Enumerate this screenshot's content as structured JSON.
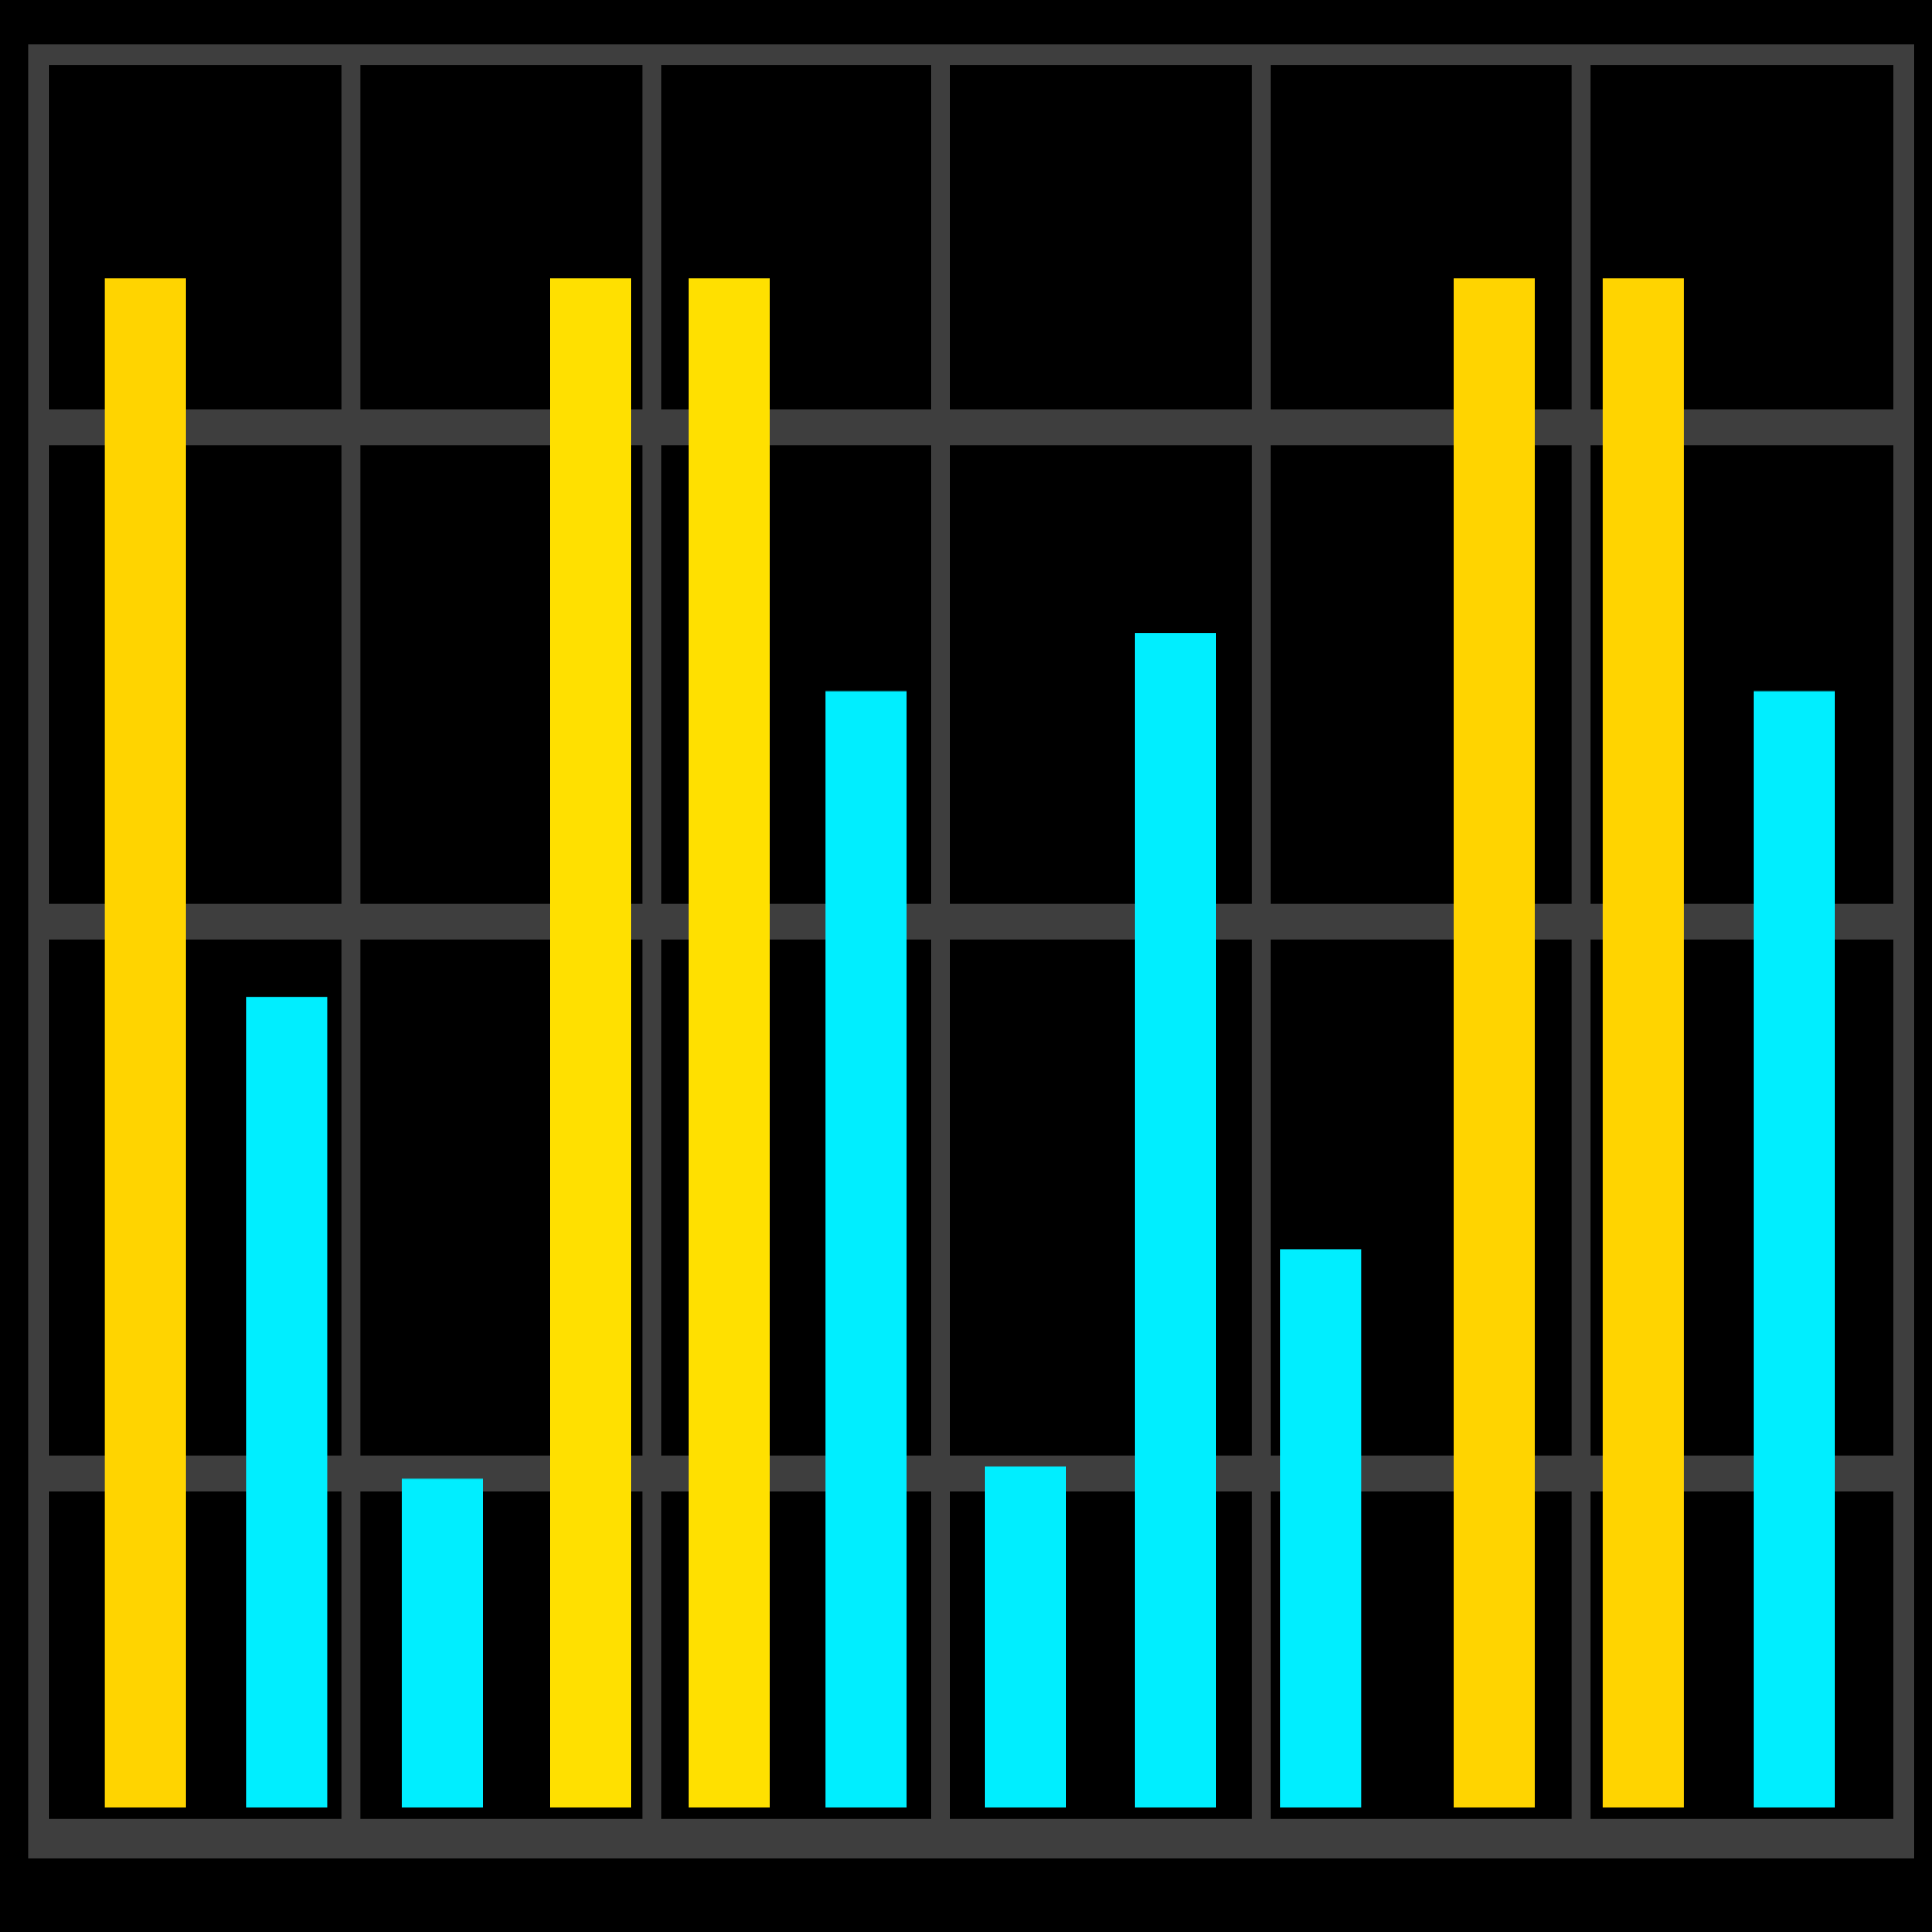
{
  "chart_data": {
    "type": "bar",
    "title": "",
    "xlabel": "",
    "ylabel": "",
    "categories": [
      "",
      "",
      "",
      "",
      "",
      "",
      "",
      "",
      "",
      "",
      "",
      ""
    ],
    "values": [
      100,
      53,
      21.5,
      100,
      100,
      73,
      22.3,
      76.8,
      36.5,
      100,
      100,
      73
    ],
    "bar_colors": [
      "#FFD400",
      "#00EEFF",
      "#00EEFF",
      "#FFE000",
      "#FFE000",
      "#00EEFF",
      "#00EEFF",
      "#00EEFF",
      "#00EEFF",
      "#FFD400",
      "#FFD400",
      "#00EEFF"
    ],
    "ylim": [
      0,
      100
    ],
    "grid": true,
    "legend": "none",
    "colors": {
      "background": "#000000",
      "grid": "#3E3E3E",
      "gold": "#FFD400",
      "cyan": "#00EEFF"
    }
  }
}
